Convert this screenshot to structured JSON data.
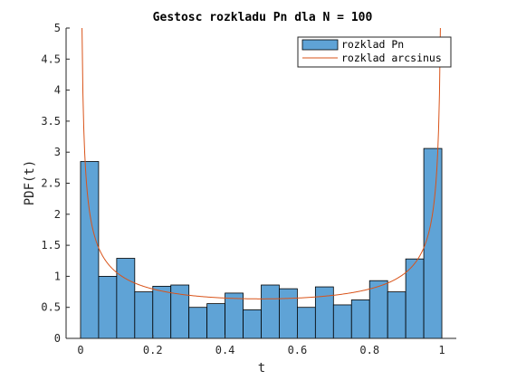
{
  "chart_data": {
    "type": "bar",
    "title": "Gestosc rozkladu Pn dla N = 100",
    "xlabel": "t",
    "ylabel": "PDF(t)",
    "xlim": [
      -0.04,
      1.04
    ],
    "ylim": [
      0,
      5
    ],
    "xticks": [
      0,
      0.2,
      0.4,
      0.6,
      0.8,
      1
    ],
    "xtick_labels": [
      "0",
      "0.2",
      "0.4",
      "0.6",
      "0.8",
      "1"
    ],
    "yticks": [
      0,
      0.5,
      1,
      1.5,
      2,
      2.5,
      3,
      3.5,
      4,
      4.5,
      5
    ],
    "ytick_labels": [
      "0",
      "0.5",
      "1",
      "1.5",
      "2",
      "2.5",
      "3",
      "3.5",
      "4",
      "4.5",
      "5"
    ],
    "grid": false,
    "legend_position": "top-right",
    "series": [
      {
        "name": "rozklad Pn",
        "kind": "histogram",
        "bin_edges": [
          0,
          0.05,
          0.1,
          0.15,
          0.2,
          0.25,
          0.3,
          0.35,
          0.4,
          0.45,
          0.5,
          0.55,
          0.6,
          0.65,
          0.7,
          0.75,
          0.8,
          0.85,
          0.9,
          0.95,
          1.0
        ],
        "values": [
          2.85,
          1.0,
          1.29,
          0.75,
          0.84,
          0.86,
          0.5,
          0.56,
          0.73,
          0.46,
          0.86,
          0.8,
          0.5,
          0.83,
          0.54,
          0.62,
          0.93,
          0.75,
          1.28,
          3.06
        ],
        "color": "#5fa3d6"
      },
      {
        "name": "rozklad arcsinus",
        "kind": "line",
        "formula": "1/(pi*sqrt(t*(1-t)))",
        "color": "#d95319"
      }
    ]
  }
}
